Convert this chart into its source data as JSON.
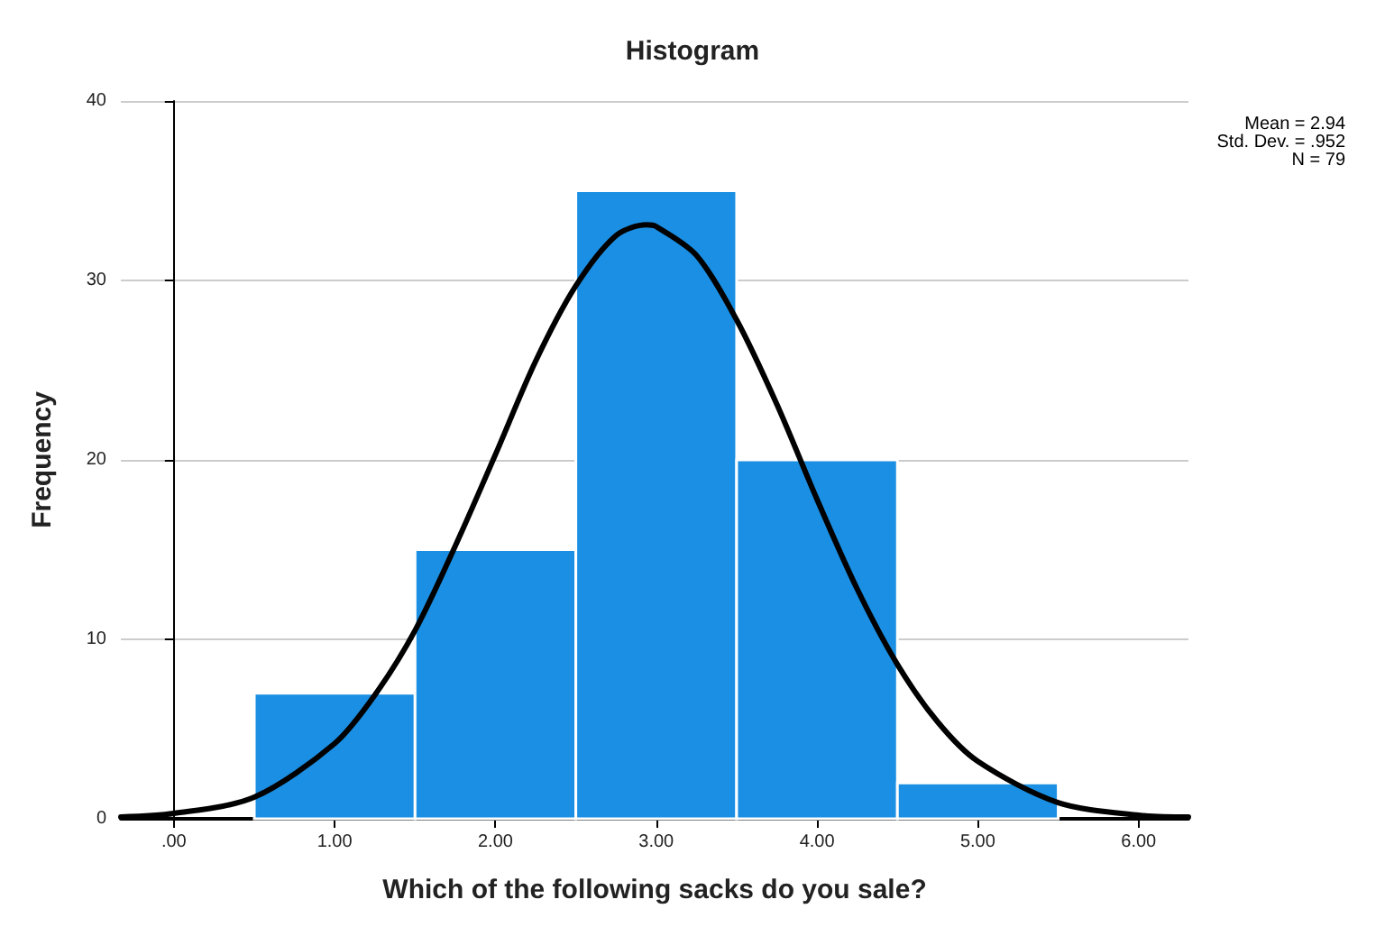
{
  "chart_data": {
    "type": "histogram",
    "title": "Histogram",
    "xlabel": "Which of the following sacks do you sale?",
    "ylabel": "Frequency",
    "bins": [
      0.5,
      1.5,
      2.5,
      3.5,
      4.5,
      5.5
    ],
    "values": [
      7,
      15,
      35,
      20,
      2
    ],
    "color": "#1a8fe3",
    "series": [
      {
        "type": "line",
        "color": "#000000",
        "marker": "none",
        "line_style": "solid",
        "x": [
          -0.33,
          0,
          0.5,
          1,
          1.25,
          1.5,
          1.75,
          2,
          2.25,
          2.5,
          2.75,
          2.94,
          3,
          3.25,
          3.5,
          3.75,
          4,
          4.25,
          4.5,
          4.75,
          5,
          5.5,
          6,
          6.31
        ],
        "values": [
          0.1,
          0.3,
          1.2,
          4.2,
          6.9,
          10.5,
          15.2,
          20.3,
          25.5,
          29.7,
          32.5,
          33.1,
          33,
          31.4,
          27.8,
          23.1,
          17.8,
          12.8,
          8.6,
          5.4,
          3.2,
          0.9,
          0.2,
          0.1
        ]
      }
    ],
    "xlim": [
      -0.33,
      6.31
    ],
    "xticks": [
      {
        "value": 0,
        "label": ".00"
      },
      {
        "value": 1,
        "label": "1.00"
      },
      {
        "value": 2,
        "label": "2.00"
      },
      {
        "value": 3,
        "label": "3.00"
      },
      {
        "value": 4,
        "label": "4.00"
      },
      {
        "value": 5,
        "label": "5.00"
      },
      {
        "value": 6,
        "label": "6.00"
      }
    ],
    "ylim": [
      0,
      40
    ],
    "yticks": [
      0,
      10,
      20,
      30,
      40
    ],
    "grid": "y",
    "annotations": [
      "Mean = 2.94",
      "Std. Dev. = .952",
      "N = 79"
    ]
  }
}
